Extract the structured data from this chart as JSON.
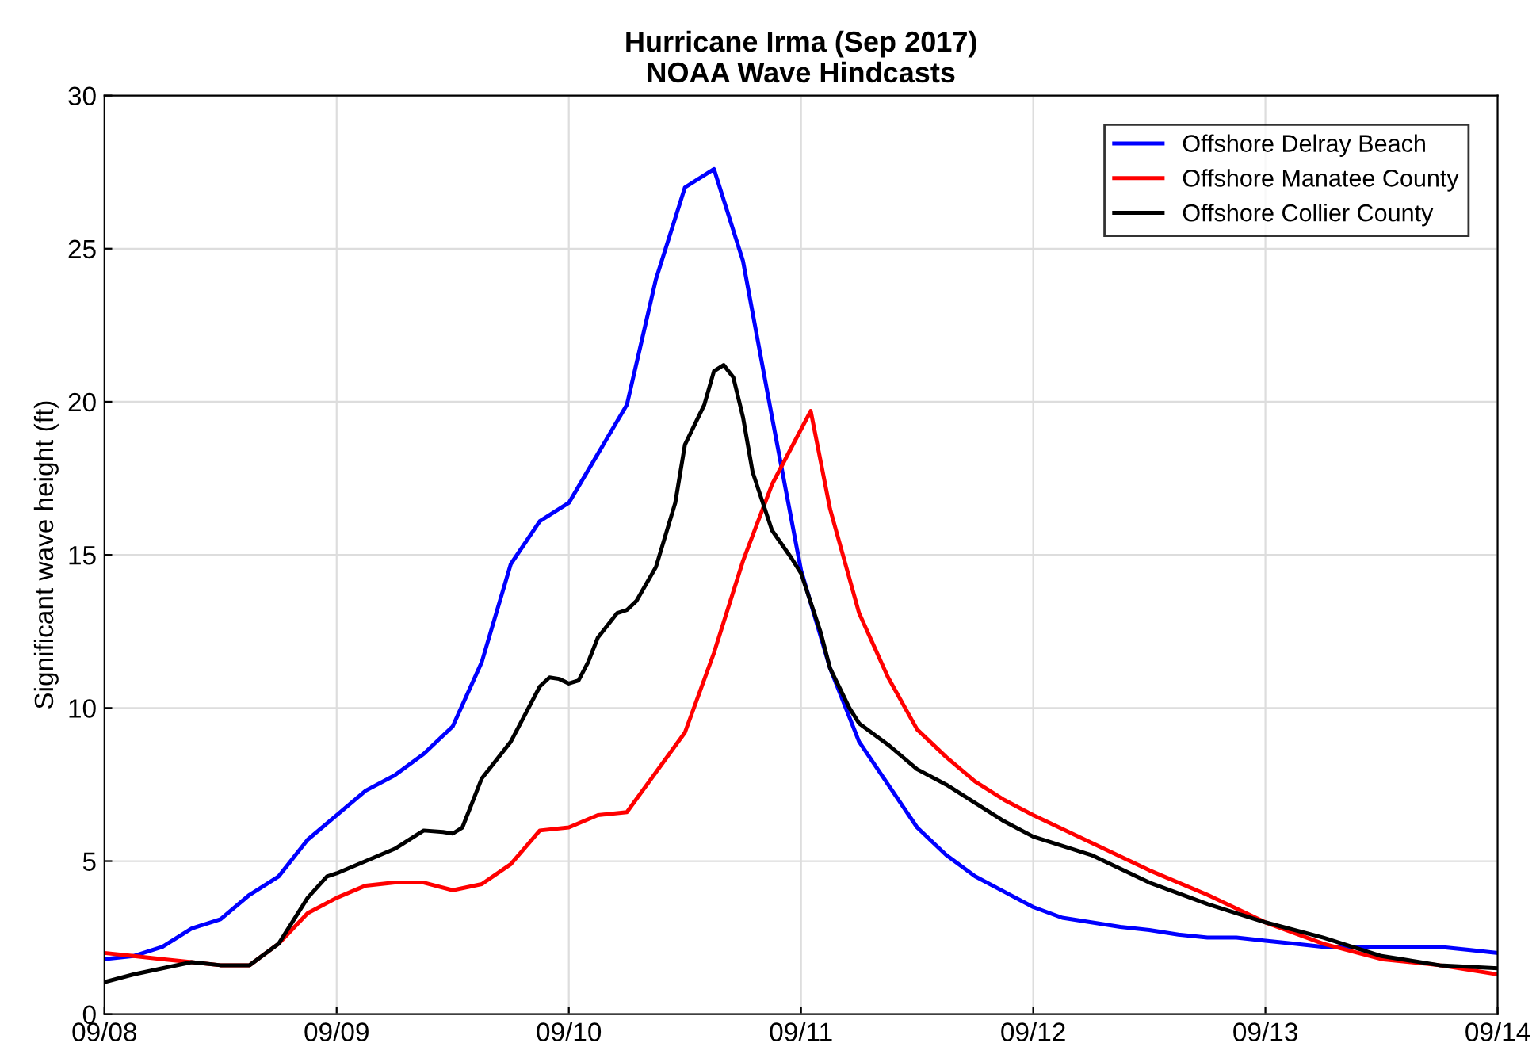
{
  "chart_data": {
    "type": "line",
    "title": "Hurricane Irma (Sep 2017)\nNOAA Wave Hindcasts",
    "ylabel": "Significant wave height (ft)",
    "xlim": [
      "2017-09-08",
      "2017-09-14"
    ],
    "xticks": [
      {
        "value": "2017-09-08",
        "label": "09/08"
      },
      {
        "value": "2017-09-09",
        "label": "09/09"
      },
      {
        "value": "2017-09-10",
        "label": "09/10"
      },
      {
        "value": "2017-09-11",
        "label": "09/11"
      },
      {
        "value": "2017-09-12",
        "label": "09/12"
      },
      {
        "value": "2017-09-13",
        "label": "09/13"
      },
      {
        "value": "2017-09-14",
        "label": "09/14"
      }
    ],
    "ylim": [
      0,
      30
    ],
    "yticks": [
      0,
      5,
      10,
      15,
      20,
      25,
      30
    ],
    "grid": true,
    "legend": "top right",
    "marker": "none",
    "line_style": "solid",
    "series": [
      {
        "name": "Offshore Delray Beach",
        "color": "#0000ff",
        "x": [
          "2017-09-08T00:00",
          "2017-09-08T03:00",
          "2017-09-08T06:00",
          "2017-09-08T09:00",
          "2017-09-08T12:00",
          "2017-09-08T15:00",
          "2017-09-08T18:00",
          "2017-09-08T21:00",
          "2017-09-09T00:00",
          "2017-09-09T03:00",
          "2017-09-09T06:00",
          "2017-09-09T09:00",
          "2017-09-09T12:00",
          "2017-09-09T15:00",
          "2017-09-09T18:00",
          "2017-09-09T21:00",
          "2017-09-10T00:00",
          "2017-09-10T03:00",
          "2017-09-10T06:00",
          "2017-09-10T09:00",
          "2017-09-10T12:00",
          "2017-09-10T15:00",
          "2017-09-10T18:00",
          "2017-09-10T21:00",
          "2017-09-11T00:00",
          "2017-09-11T03:00",
          "2017-09-11T06:00",
          "2017-09-11T09:00",
          "2017-09-11T12:00",
          "2017-09-11T15:00",
          "2017-09-11T18:00",
          "2017-09-11T21:00",
          "2017-09-12T00:00",
          "2017-09-12T03:00",
          "2017-09-12T06:00",
          "2017-09-12T09:00",
          "2017-09-12T12:00",
          "2017-09-12T15:00",
          "2017-09-12T18:00",
          "2017-09-12T21:00",
          "2017-09-13T00:00",
          "2017-09-13T03:00",
          "2017-09-13T06:00",
          "2017-09-13T09:00",
          "2017-09-13T12:00",
          "2017-09-13T15:00",
          "2017-09-13T18:00",
          "2017-09-13T21:00",
          "2017-09-14T00:00"
        ],
        "values": [
          1.8,
          1.9,
          2.2,
          2.8,
          3.1,
          3.9,
          4.5,
          5.7,
          6.5,
          7.3,
          7.8,
          8.5,
          9.4,
          11.5,
          14.7,
          16.1,
          16.7,
          18.3,
          19.9,
          24.0,
          27.0,
          27.6,
          24.6,
          19.5,
          14.5,
          11.3,
          8.9,
          7.5,
          6.1,
          5.2,
          4.5,
          4.0,
          3.5,
          3.15,
          3.0,
          2.85,
          2.75,
          2.6,
          2.5,
          2.5,
          2.4,
          2.3,
          2.2,
          2.2,
          2.2,
          2.2,
          2.2,
          2.1,
          2.0
        ]
      },
      {
        "name": "Offshore Manatee County",
        "color": "#ff0000",
        "x": [
          "2017-09-08T00:00",
          "2017-09-08T03:00",
          "2017-09-08T06:00",
          "2017-09-08T09:00",
          "2017-09-08T12:00",
          "2017-09-08T15:00",
          "2017-09-08T18:00",
          "2017-09-08T21:00",
          "2017-09-09T00:00",
          "2017-09-09T03:00",
          "2017-09-09T06:00",
          "2017-09-09T09:00",
          "2017-09-09T12:00",
          "2017-09-09T15:00",
          "2017-09-09T18:00",
          "2017-09-09T21:00",
          "2017-09-10T00:00",
          "2017-09-10T03:00",
          "2017-09-10T06:00",
          "2017-09-10T09:00",
          "2017-09-10T12:00",
          "2017-09-10T15:00",
          "2017-09-10T18:00",
          "2017-09-10T21:00",
          "2017-09-11T01:00",
          "2017-09-11T03:00",
          "2017-09-11T06:00",
          "2017-09-11T09:00",
          "2017-09-11T12:00",
          "2017-09-11T15:00",
          "2017-09-11T18:00",
          "2017-09-11T21:00",
          "2017-09-12T00:00",
          "2017-09-12T06:00",
          "2017-09-12T12:00",
          "2017-09-12T18:00",
          "2017-09-13T00:00",
          "2017-09-13T06:00",
          "2017-09-13T12:00",
          "2017-09-13T18:00",
          "2017-09-14T00:00"
        ],
        "values": [
          2.0,
          1.9,
          1.8,
          1.7,
          1.6,
          1.6,
          2.3,
          3.3,
          3.8,
          4.2,
          4.3,
          4.3,
          4.05,
          4.25,
          4.9,
          6.0,
          6.1,
          6.5,
          6.6,
          7.9,
          9.2,
          11.8,
          14.8,
          17.3,
          19.7,
          16.5,
          13.1,
          11.0,
          9.3,
          8.4,
          7.6,
          7.0,
          6.5,
          5.6,
          4.7,
          3.9,
          3.0,
          2.3,
          1.8,
          1.6,
          1.3
        ]
      },
      {
        "name": "Offshore Collier County",
        "color": "#000000",
        "x": [
          "2017-09-08T00:00",
          "2017-09-08T03:00",
          "2017-09-08T06:00",
          "2017-09-08T09:00",
          "2017-09-08T12:00",
          "2017-09-08T15:00",
          "2017-09-08T18:00",
          "2017-09-08T21:00",
          "2017-09-08T23:00",
          "2017-09-09T00:00",
          "2017-09-09T03:00",
          "2017-09-09T06:00",
          "2017-09-09T09:00",
          "2017-09-09T11:00",
          "2017-09-09T12:00",
          "2017-09-09T13:00",
          "2017-09-09T15:00",
          "2017-09-09T18:00",
          "2017-09-09T21:00",
          "2017-09-09T22:00",
          "2017-09-09T23:00",
          "2017-09-10T00:00",
          "2017-09-10T01:00",
          "2017-09-10T02:00",
          "2017-09-10T03:00",
          "2017-09-10T05:00",
          "2017-09-10T06:00",
          "2017-09-10T07:00",
          "2017-09-10T09:00",
          "2017-09-10T11:00",
          "2017-09-10T12:00",
          "2017-09-10T14:00",
          "2017-09-10T15:00",
          "2017-09-10T16:00",
          "2017-09-10T17:00",
          "2017-09-10T18:00",
          "2017-09-10T19:00",
          "2017-09-10T21:00",
          "2017-09-10T23:00",
          "2017-09-11T00:00",
          "2017-09-11T02:00",
          "2017-09-11T03:00",
          "2017-09-11T05:00",
          "2017-09-11T06:00",
          "2017-09-11T09:00",
          "2017-09-11T12:00",
          "2017-09-11T15:00",
          "2017-09-11T18:00",
          "2017-09-11T21:00",
          "2017-09-12T00:00",
          "2017-09-12T06:00",
          "2017-09-12T12:00",
          "2017-09-12T18:00",
          "2017-09-13T00:00",
          "2017-09-13T06:00",
          "2017-09-13T12:00",
          "2017-09-13T18:00",
          "2017-09-14T00:00"
        ],
        "values": [
          1.05,
          1.3,
          1.5,
          1.7,
          1.6,
          1.6,
          2.3,
          3.8,
          4.5,
          4.6,
          5.0,
          5.4,
          6.0,
          5.95,
          5.9,
          6.1,
          7.7,
          8.9,
          10.7,
          11.0,
          10.95,
          10.8,
          10.9,
          11.5,
          12.3,
          13.1,
          13.2,
          13.5,
          14.6,
          16.7,
          18.6,
          19.9,
          21.0,
          21.2,
          20.8,
          19.5,
          17.7,
          15.8,
          14.9,
          14.4,
          12.5,
          11.3,
          10.0,
          9.5,
          8.8,
          8.0,
          7.5,
          6.9,
          6.3,
          5.8,
          5.2,
          4.3,
          3.6,
          3.0,
          2.5,
          1.9,
          1.6,
          1.5
        ]
      }
    ]
  }
}
